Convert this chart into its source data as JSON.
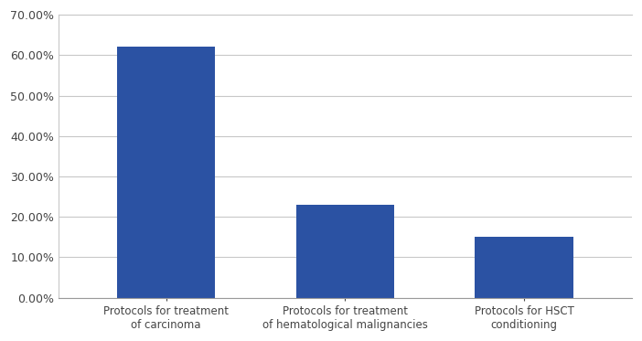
{
  "categories": [
    "Protocols for treatment\nof carcinoma",
    "Protocols for treatment\nof hematological malignancies",
    "Protocols for HSCT\nconditioning"
  ],
  "values": [
    0.62,
    0.23,
    0.15
  ],
  "bar_color": "#2b52a3",
  "ylim": [
    0,
    0.7
  ],
  "yticks": [
    0.0,
    0.1,
    0.2,
    0.3,
    0.4,
    0.5,
    0.6,
    0.7
  ],
  "background_color": "#ffffff",
  "grid_color": "#c8c8c8",
  "tick_label_fontsize": 9,
  "xlabel_fontsize": 8.5,
  "bar_width": 0.55
}
